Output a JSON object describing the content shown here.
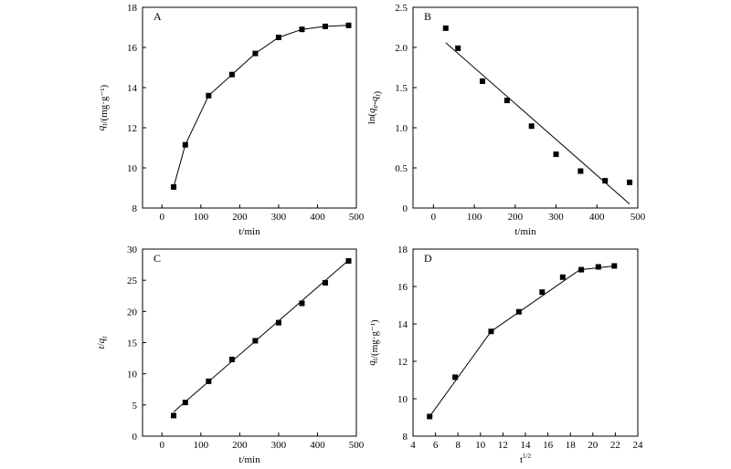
{
  "chart_data": [
    {
      "type": "line",
      "panel_label": "A",
      "xlabel": "t/min",
      "ylabel": "q_t/(mg·g⁻¹)",
      "xlim": [
        -50,
        500
      ],
      "ylim": [
        8,
        18
      ],
      "xticks": [
        0,
        100,
        200,
        300,
        400,
        500
      ],
      "yticks": [
        8,
        10,
        12,
        14,
        16,
        18
      ],
      "x_tick_labels": [
        "0",
        "100",
        "200",
        "300",
        "400",
        "500"
      ],
      "y_tick_labels": [
        "8",
        "10",
        "12",
        "14",
        "16",
        "18"
      ],
      "series": [
        {
          "x": [
            30,
            60,
            120,
            180,
            240,
            300,
            360,
            420,
            480
          ],
          "values": [
            9.05,
            11.15,
            13.6,
            14.65,
            15.7,
            16.5,
            16.9,
            17.05,
            17.1
          ],
          "marker": "square",
          "connect": true
        }
      ]
    },
    {
      "type": "scatter",
      "panel_label": "B",
      "xlabel": "t/min",
      "ylabel": "ln(q_e-q_t)",
      "xlim": [
        -50,
        500
      ],
      "ylim": [
        0,
        2.5
      ],
      "xticks": [
        0,
        100,
        200,
        300,
        400,
        500
      ],
      "yticks": [
        0,
        0.5,
        1.0,
        1.5,
        2.0,
        2.5
      ],
      "x_tick_labels": [
        "0",
        "100",
        "200",
        "300",
        "400",
        "500"
      ],
      "y_tick_labels": [
        "0",
        "0.5",
        "1.0",
        "1.5",
        "2.0",
        "2.5"
      ],
      "series": [
        {
          "x": [
            30,
            60,
            120,
            180,
            240,
            300,
            360,
            420,
            480
          ],
          "values": [
            2.24,
            1.99,
            1.58,
            1.34,
            1.02,
            0.67,
            0.46,
            0.34,
            0.32
          ],
          "marker": "square"
        }
      ],
      "fit_line": {
        "x": [
          30,
          480
        ],
        "values": [
          2.06,
          0.05
        ]
      }
    },
    {
      "type": "scatter",
      "panel_label": "C",
      "xlabel": "t/min",
      "ylabel": "t/q_t",
      "xlim": [
        -50,
        500
      ],
      "ylim": [
        0,
        30
      ],
      "xticks": [
        0,
        100,
        200,
        300,
        400,
        500
      ],
      "yticks": [
        0,
        5,
        10,
        15,
        20,
        25,
        30
      ],
      "x_tick_labels": [
        "0",
        "100",
        "200",
        "300",
        "400",
        "500"
      ],
      "y_tick_labels": [
        "0",
        "5",
        "10",
        "15",
        "20",
        "25",
        "30"
      ],
      "series": [
        {
          "x": [
            30,
            60,
            120,
            180,
            240,
            300,
            360,
            420,
            480
          ],
          "values": [
            3.3,
            5.4,
            8.8,
            12.3,
            15.3,
            18.2,
            21.3,
            24.6,
            28.1
          ],
          "marker": "square"
        }
      ],
      "fit_line": {
        "x": [
          30,
          480
        ],
        "values": [
          3.9,
          28.2
        ]
      }
    },
    {
      "type": "scatter",
      "panel_label": "D",
      "xlabel": "t^1/2",
      "ylabel": "q_t/(mg·g⁻¹)",
      "xlim": [
        4,
        24
      ],
      "ylim": [
        8,
        18
      ],
      "xticks": [
        4,
        6,
        8,
        10,
        12,
        14,
        16,
        18,
        20,
        22,
        24
      ],
      "yticks": [
        8,
        10,
        12,
        14,
        16,
        18
      ],
      "x_tick_labels": [
        "4",
        "6",
        "8",
        "10",
        "12",
        "14",
        "16",
        "18",
        "20",
        "22",
        "24"
      ],
      "y_tick_labels": [
        "8",
        "10",
        "12",
        "14",
        "16",
        "18"
      ],
      "series": [
        {
          "x": [
            5.48,
            7.75,
            10.95,
            13.42,
            15.49,
            17.32,
            18.97,
            20.49,
            21.91
          ],
          "values": [
            9.05,
            11.15,
            13.6,
            14.65,
            15.7,
            16.5,
            16.9,
            17.05,
            17.1
          ],
          "marker": "square"
        }
      ],
      "fit_segments": [
        {
          "x": [
            5.48,
            10.95
          ],
          "values": [
            9.05,
            13.6
          ]
        },
        {
          "x": [
            10.95,
            18.97
          ],
          "values": [
            13.6,
            16.95
          ]
        },
        {
          "x": [
            18.97,
            21.91
          ],
          "values": [
            16.9,
            17.1
          ]
        }
      ]
    }
  ]
}
